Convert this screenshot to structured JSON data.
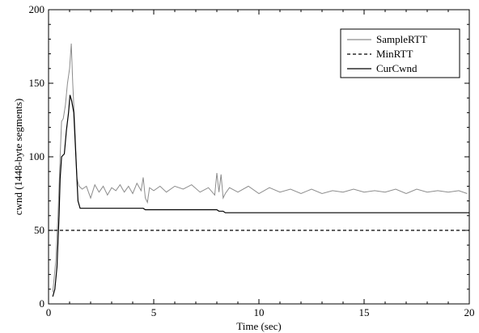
{
  "chart_data": {
    "type": "line",
    "title": "",
    "xlabel": "Time (sec)",
    "ylabel": "cwnd (1448-byte segments)",
    "xlim": [
      0,
      20
    ],
    "ylim": [
      0,
      200
    ],
    "xticks": [
      "0",
      "5",
      "10",
      "15",
      "20"
    ],
    "yticks": [
      "0",
      "50",
      "100",
      "150",
      "200"
    ],
    "grid": false,
    "legend_position": "top-right",
    "series": [
      {
        "name": "SampleRTT",
        "color": "#8c8c8c",
        "style": "solid",
        "x": [
          0.2,
          0.35,
          0.45,
          0.55,
          0.62,
          0.7,
          0.8,
          0.9,
          1.0,
          1.08,
          1.15,
          1.25,
          1.35,
          1.45,
          1.6,
          1.8,
          2.0,
          2.2,
          2.4,
          2.6,
          2.8,
          3.0,
          3.2,
          3.4,
          3.6,
          3.8,
          4.0,
          4.2,
          4.4,
          4.5,
          4.6,
          4.7,
          4.8,
          5.0,
          5.3,
          5.6,
          6.0,
          6.4,
          6.8,
          7.2,
          7.6,
          7.9,
          8.0,
          8.1,
          8.2,
          8.3,
          8.4,
          8.6,
          9.0,
          9.5,
          10.0,
          10.5,
          11.0,
          11.5,
          12.0,
          12.5,
          13.0,
          13.5,
          14.0,
          14.5,
          15.0,
          15.5,
          16.0,
          16.5,
          17.0,
          17.5,
          18.0,
          18.5,
          19.0,
          19.5,
          19.9
        ],
        "y": [
          8,
          30,
          60,
          100,
          124,
          126,
          135,
          150,
          160,
          177,
          150,
          120,
          85,
          80,
          78,
          80,
          72,
          81,
          76,
          80,
          74,
          79,
          77,
          81,
          76,
          80,
          75,
          82,
          77,
          86,
          72,
          69,
          79,
          77,
          80,
          76,
          80,
          78,
          81,
          76,
          79,
          74,
          89,
          76,
          88,
          72,
          75,
          79,
          76,
          80,
          75,
          79,
          76,
          78,
          75,
          78,
          75,
          77,
          76,
          78,
          76,
          77,
          76,
          78,
          75,
          78,
          76,
          77,
          76,
          77,
          75
        ]
      },
      {
        "name": "MinRTT",
        "color": "#000000",
        "style": "dashed",
        "x": [
          0,
          20
        ],
        "y": [
          50,
          50
        ]
      },
      {
        "name": "CurCwnd",
        "color": "#000000",
        "style": "solid",
        "x": [
          0.2,
          0.3,
          0.4,
          0.5,
          0.55,
          0.62,
          0.75,
          0.85,
          0.95,
          1.02,
          1.1,
          1.2,
          1.3,
          1.4,
          1.5,
          2.0,
          4.5,
          4.6,
          8.0,
          8.1,
          8.3,
          8.4,
          20.0
        ],
        "y": [
          5,
          10,
          25,
          60,
          85,
          100,
          102,
          118,
          130,
          142,
          138,
          130,
          100,
          70,
          65,
          65,
          65,
          64,
          64,
          63,
          63,
          62,
          62
        ]
      }
    ]
  }
}
